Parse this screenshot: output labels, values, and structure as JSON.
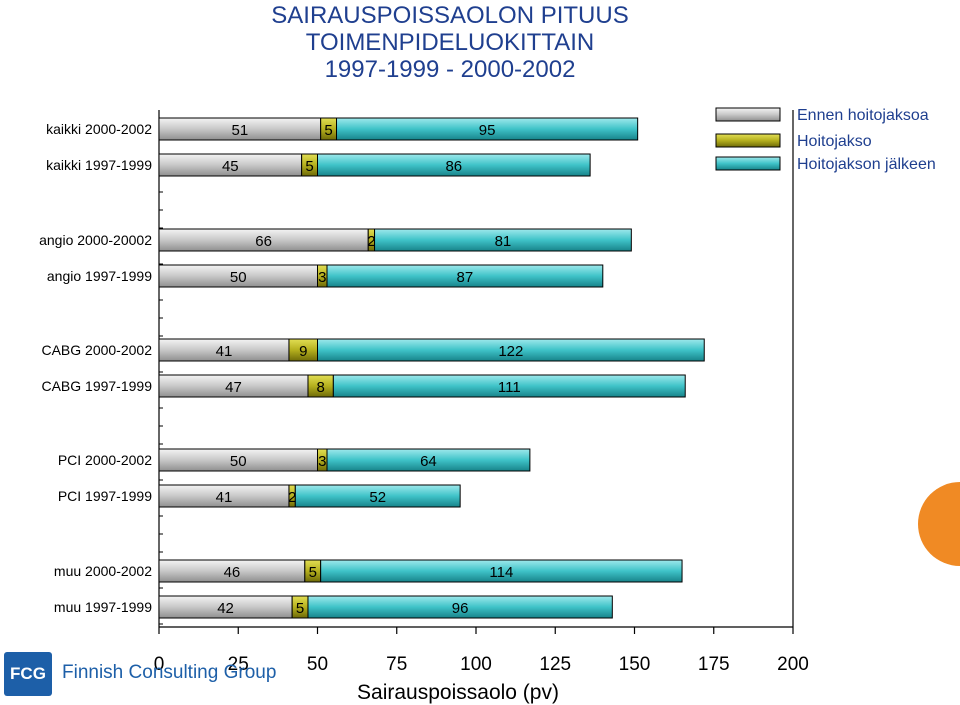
{
  "title": [
    "SAIRAUSPOISSAOLON PITUUS",
    "TOIMENPIDELUOKITTAIN",
    "1997-1999 - 2000-2002"
  ],
  "logo": {
    "mark": "FCG",
    "text": "Finnish Consulting Group"
  },
  "colors": {
    "before": "#c8c8c8",
    "during": "#b5b01e",
    "after": "#3fc3c8",
    "decor": "#f08a24"
  },
  "chart_data": {
    "type": "bar",
    "orientation": "horizontal",
    "stacked": true,
    "xlabel": "Sairauspoissaolo (pv)",
    "xlim": [
      0,
      200
    ],
    "xticks": [
      0,
      25,
      50,
      75,
      100,
      125,
      150,
      175,
      200
    ],
    "categories": [
      "kaikki 2000-2002",
      "kaikki 1997-1999",
      "angio 2000-20002",
      "angio 1997-1999",
      "CABG 2000-2002",
      "CABG 1997-1999",
      "PCI 2000-2002",
      "PCI 1997-1999",
      "muu 2000-2002",
      "muu 1997-1999"
    ],
    "series": [
      {
        "name": "Ennen hoitojaksoa",
        "values": [
          51,
          45,
          66,
          50,
          41,
          47,
          50,
          41,
          46,
          42
        ]
      },
      {
        "name": "Hoitojakso",
        "values": [
          5,
          5,
          2,
          3,
          9,
          8,
          3,
          2,
          5,
          5
        ]
      },
      {
        "name": "Hoitojakson jälkeen",
        "values": [
          95,
          86,
          81,
          87,
          122,
          111,
          64,
          52,
          114,
          96
        ]
      }
    ],
    "legend": "top-right",
    "grid": false
  }
}
